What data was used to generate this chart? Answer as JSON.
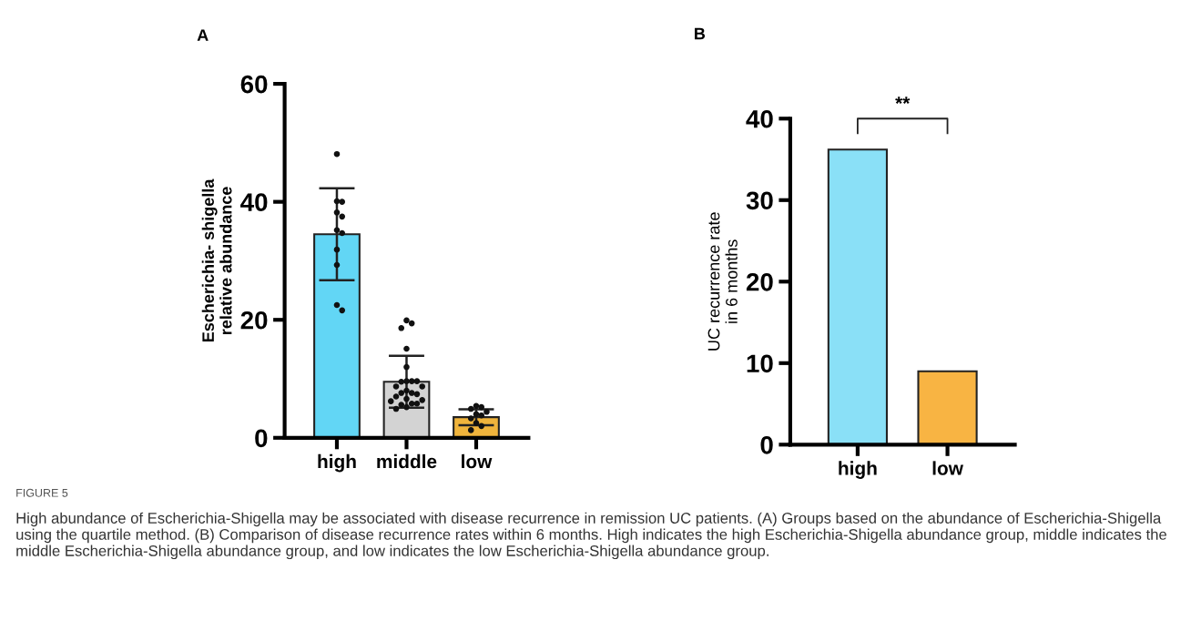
{
  "chart_data": [
    {
      "type": "bar",
      "title": "A",
      "ylabel": "Escherichia- shigella\nrelative abundance",
      "categories": [
        "high",
        "middle",
        "low"
      ],
      "series": [
        {
          "type": "bar",
          "values": [
            34.5,
            9.5,
            3.5
          ],
          "colors": [
            "#62d6f5",
            "#d3d3d3",
            "#f0b43c"
          ],
          "errors": [
            7.8,
            4.4,
            1.35
          ]
        },
        {
          "type": "scatter",
          "color": "#111111",
          "x": [
            "high",
            "high",
            "high",
            "high",
            "high",
            "high",
            "high",
            "high",
            "high",
            "high",
            "high",
            "middle",
            "middle",
            "middle",
            "middle",
            "middle",
            "middle",
            "middle",
            "middle",
            "middle",
            "middle",
            "middle",
            "middle",
            "middle",
            "middle",
            "middle",
            "middle",
            "middle",
            "middle",
            "middle",
            "middle",
            "middle",
            "middle",
            "middle",
            "middle",
            "low",
            "low",
            "low",
            "low",
            "low",
            "low",
            "low",
            "low",
            "low",
            "low"
          ],
          "values": [
            48.1,
            40.1,
            40.0,
            38.2,
            37.5,
            35.2,
            34.7,
            31.9,
            29.3,
            22.5,
            21.6,
            19.9,
            19.4,
            18.6,
            15.1,
            12.0,
            9.6,
            9.6,
            9.5,
            9.6,
            8.7,
            8.7,
            8.0,
            7.6,
            7.6,
            7.4,
            7.0,
            6.6,
            6.4,
            5.8,
            5.6,
            5.8,
            5.2,
            4.9,
            6.2,
            5.4,
            5.2,
            4.9,
            4.4,
            4.0,
            3.8,
            3.3,
            2.5,
            2.0,
            1.3
          ]
        }
      ],
      "ylim": [
        0,
        60
      ],
      "yticks": [
        0,
        20,
        40,
        60
      ],
      "marker": "circle",
      "annotations": [
        "FIGURE 5",
        "High abundance of Escherichia-Shigella may be associated with disease recurrence in remission UC patients. (A) Groups based on the abundance of Escherichia-Shigella using the quartile method. (B) Comparison of disease recurrence rates within 6 months. High indicates the high Escherichia-Shigella abundance group, middle indicates the middle Escherichia-Shigella abundance group, and low indicates the low Escherichia-Shigella abundance group."
      ]
    },
    {
      "type": "bar",
      "title": "B",
      "ylabel": "UC recurrence rate\nin 6 months",
      "categories": [
        "high",
        "low"
      ],
      "values": [
        36.2,
        9.0
      ],
      "colors": [
        "#8ae0f7",
        "#f8b443"
      ],
      "ylim": [
        0,
        40
      ],
      "yticks": [
        0,
        10,
        20,
        30,
        40
      ],
      "annotations": [
        "**"
      ]
    }
  ]
}
